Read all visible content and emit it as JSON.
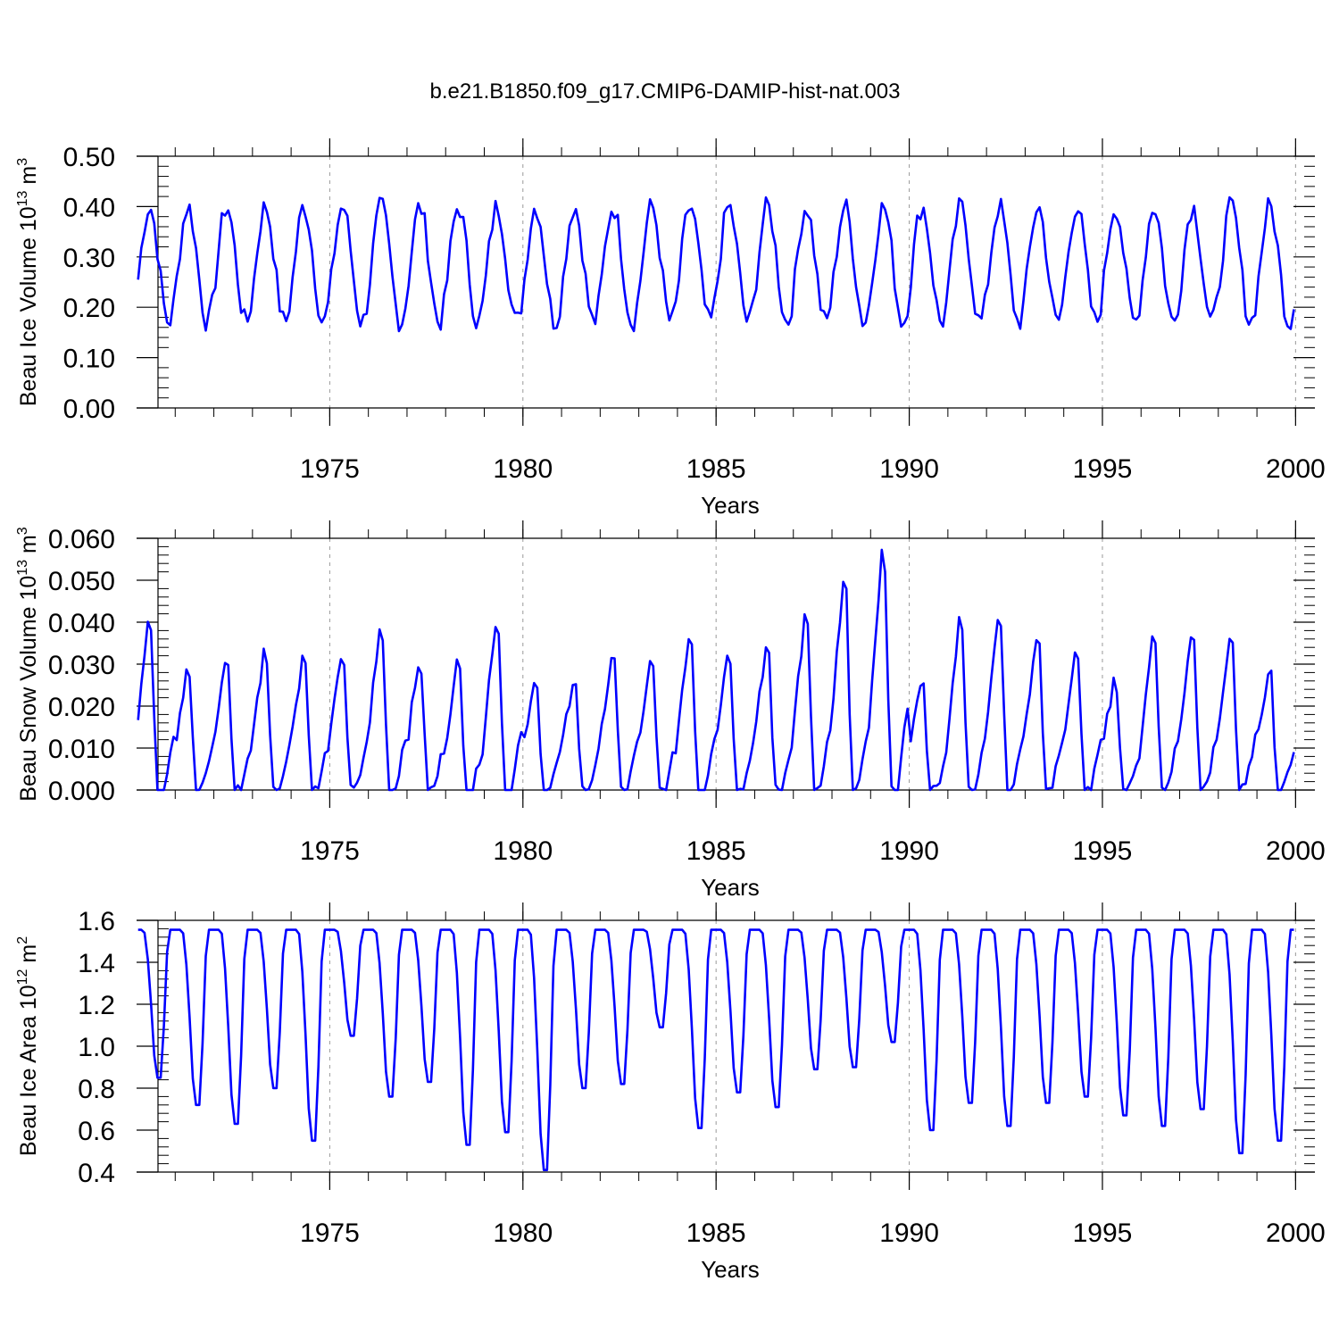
{
  "page": {
    "title": "b.e21.B1850.f09_g17.CMIP6-DAMIP-hist-nat.003"
  },
  "chart_data": [
    {
      "type": "line",
      "ylabel": "Beau Ice Volume 10",
      "ylabel_exp": "13",
      "ylabel_unit": " m",
      "ylabel_unit_exp": "3",
      "xlabel": "Years",
      "xlim": [
        1970.0,
        2000.0
      ],
      "ylim": [
        0.0,
        0.5
      ],
      "yticks": [
        0.0,
        0.1,
        0.2,
        0.3,
        0.4,
        0.5
      ],
      "ytick_labels": [
        "0.00",
        "0.10",
        "0.20",
        "0.30",
        "0.40",
        "0.50"
      ],
      "xticks": [
        1975,
        1980,
        1985,
        1990,
        1995,
        2000
      ],
      "xtick_labels": [
        "1975",
        "1980",
        "1985",
        "1990",
        "1995",
        "2000"
      ],
      "series": [
        {
          "color": "#0000ff",
          "amplitude": 0.115,
          "baseline": 0.285,
          "noise": 0.045,
          "phase": 0.0
        }
      ]
    },
    {
      "type": "line",
      "ylabel": "Beau Snow Volume 10",
      "ylabel_exp": "13",
      "ylabel_unit": " m",
      "ylabel_unit_exp": "3",
      "xlabel": "Years",
      "xlim": [
        1970.0,
        2000.0
      ],
      "ylim": [
        0.0,
        0.06
      ],
      "yticks": [
        0.0,
        0.01,
        0.02,
        0.03,
        0.04,
        0.05,
        0.06
      ],
      "ytick_labels": [
        "0.000",
        "0.010",
        "0.020",
        "0.030",
        "0.040",
        "0.050",
        "0.060"
      ],
      "xticks": [
        1975,
        1980,
        1985,
        1990,
        1995,
        2000
      ],
      "xtick_labels": [
        "1975",
        "1980",
        "1985",
        "1990",
        "1995",
        "2000"
      ],
      "series": [
        {
          "color": "#0000ff",
          "peaks": [
            0.04,
            0.029,
            0.031,
            0.033,
            0.032,
            0.032,
            0.038,
            0.03,
            0.03,
            0.04,
            0.025,
            0.026,
            0.032,
            0.03,
            0.037,
            0.033,
            0.034,
            0.041,
            0.049,
            0.056,
            0.026,
            0.04,
            0.042,
            0.037,
            0.032,
            0.026,
            0.036,
            0.037,
            0.037,
            0.029
          ]
        }
      ]
    },
    {
      "type": "line",
      "ylabel": "Beau Ice Area 10",
      "ylabel_exp": "12",
      "ylabel_unit": " m",
      "ylabel_unit_exp": "2",
      "xlabel": "Years",
      "xlim": [
        1970.0,
        2000.0
      ],
      "ylim": [
        0.4,
        1.6
      ],
      "yticks": [
        0.4,
        0.6,
        0.8,
        1.0,
        1.2,
        1.4,
        1.6
      ],
      "ytick_labels": [
        "0.4",
        "0.6",
        "0.8",
        "1.0",
        "1.2",
        "1.4",
        "1.6"
      ],
      "xticks": [
        1975,
        1980,
        1985,
        1990,
        1995,
        2000
      ],
      "xtick_labels": [
        "1975",
        "1980",
        "1985",
        "1990",
        "1995",
        "2000"
      ],
      "series": [
        {
          "color": "#0000ff",
          "max": 1.555,
          "minima": [
            0.85,
            0.72,
            0.63,
            0.8,
            0.55,
            1.05,
            0.76,
            0.83,
            0.53,
            0.59,
            0.41,
            0.8,
            0.82,
            1.09,
            0.61,
            0.78,
            0.71,
            0.89,
            0.9,
            1.02,
            0.6,
            0.73,
            0.62,
            0.73,
            0.76,
            0.67,
            0.62,
            0.7,
            0.49,
            0.55
          ]
        }
      ]
    }
  ]
}
